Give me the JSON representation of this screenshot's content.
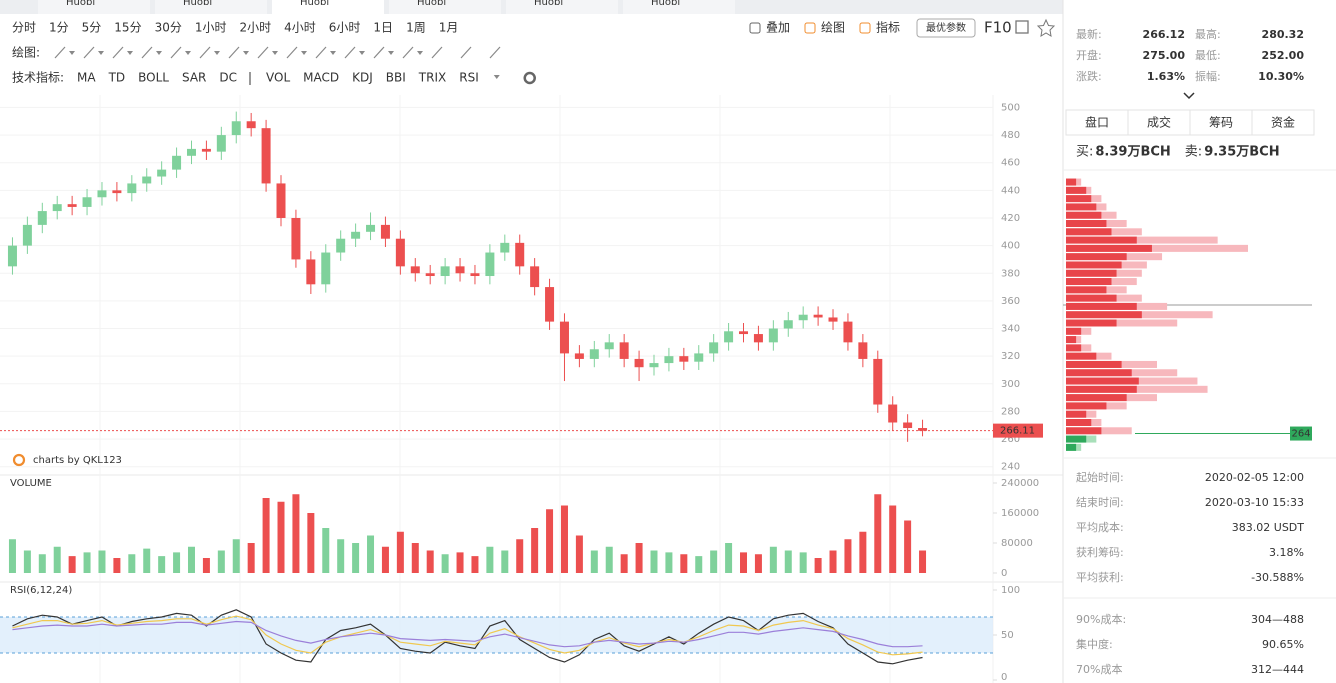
{
  "tabs": [
    "Huobi",
    "Huobi",
    "Huobi",
    "Huobi",
    "Huobi",
    "Huobi"
  ],
  "toolbar": {
    "periods": [
      "分时",
      "1分",
      "5分",
      "15分",
      "30分",
      "1小时",
      "2小时",
      "4小时",
      "6小时",
      "1日",
      "1周",
      "1月"
    ],
    "active_period": "4小时",
    "tools": [
      "叠加",
      "绘图",
      "指标"
    ],
    "active_tools": [
      "绘图",
      "指标"
    ],
    "button": "最优参数",
    "f10": "F10",
    "draw_label": "绘图:",
    "indicator_label": "技术指标:",
    "indicators": [
      "MA",
      "TD",
      "BOLL",
      "SAR",
      "DC",
      "VOL",
      "MACD",
      "KDJ",
      "BBI",
      "TRIX",
      "RSI"
    ],
    "active_indicators": [
      "VOL",
      "RSI"
    ]
  },
  "price_chart": {
    "type": "candlestick",
    "up_color": "#7fd19b",
    "down_color": "#ec4f4f",
    "ylim": [
      234,
      509
    ],
    "yticks": [
      240,
      260,
      280,
      300,
      320,
      340,
      360,
      380,
      400,
      420,
      440,
      460,
      480,
      500
    ],
    "grid": true,
    "open": [
      385,
      400,
      415,
      425,
      430,
      428,
      435,
      440,
      438,
      445,
      450,
      455,
      465,
      470,
      468,
      480,
      490,
      485,
      445,
      420,
      390,
      372,
      395,
      405,
      410,
      415,
      405,
      385,
      380,
      378,
      385,
      380,
      378,
      395,
      402,
      385,
      370,
      345,
      322,
      318,
      325,
      330,
      318,
      312,
      315,
      320,
      316,
      322,
      330,
      338,
      336,
      330,
      340,
      346,
      350,
      348,
      345,
      330,
      318,
      285,
      272,
      268
    ],
    "high": [
      406,
      421,
      431,
      436,
      436,
      441,
      446,
      446,
      451,
      456,
      461,
      471,
      476,
      476,
      486,
      497,
      496,
      491,
      451,
      426,
      396,
      401,
      411,
      416,
      424,
      421,
      411,
      391,
      386,
      391,
      391,
      386,
      401,
      408,
      408,
      391,
      376,
      351,
      328,
      331,
      336,
      336,
      324,
      321,
      326,
      326,
      328,
      336,
      344,
      344,
      342,
      346,
      352,
      356,
      356,
      354,
      351,
      336,
      324,
      291,
      278,
      274
    ],
    "low": [
      379,
      394,
      409,
      419,
      422,
      422,
      429,
      432,
      432,
      439,
      444,
      449,
      459,
      462,
      462,
      474,
      479,
      439,
      414,
      384,
      365,
      366,
      389,
      399,
      404,
      399,
      379,
      374,
      372,
      372,
      374,
      372,
      372,
      389,
      379,
      364,
      339,
      302,
      312,
      312,
      319,
      312,
      302,
      306,
      309,
      310,
      310,
      316,
      324,
      330,
      324,
      324,
      334,
      340,
      342,
      339,
      324,
      312,
      279,
      266,
      258,
      262
    ],
    "close": [
      400,
      415,
      425,
      430,
      428,
      435,
      440,
      438,
      445,
      450,
      455,
      465,
      470,
      468,
      480,
      490,
      485,
      445,
      420,
      390,
      372,
      395,
      405,
      410,
      415,
      405,
      385,
      380,
      378,
      385,
      380,
      378,
      395,
      402,
      385,
      370,
      345,
      322,
      318,
      325,
      330,
      318,
      312,
      315,
      320,
      316,
      322,
      330,
      338,
      336,
      330,
      340,
      346,
      350,
      348,
      345,
      330,
      318,
      285,
      272,
      268,
      266
    ],
    "last_price": 266.11,
    "watermark": "charts by QKL123"
  },
  "volume": {
    "type": "bar",
    "title": "VOLUME",
    "ylim": [
      0,
      240000
    ],
    "yticks": [
      0,
      80000,
      160000,
      240000
    ],
    "values": [
      90000,
      60000,
      50000,
      70000,
      45000,
      55000,
      60000,
      40000,
      50000,
      65000,
      45000,
      55000,
      70000,
      40000,
      60000,
      90000,
      80000,
      200000,
      190000,
      210000,
      160000,
      120000,
      90000,
      80000,
      100000,
      70000,
      110000,
      80000,
      60000,
      50000,
      55000,
      45000,
      70000,
      60000,
      90000,
      120000,
      170000,
      180000,
      100000,
      60000,
      70000,
      50000,
      80000,
      60000,
      55000,
      50000,
      45000,
      60000,
      80000,
      55000,
      50000,
      70000,
      60000,
      55000,
      40000,
      60000,
      90000,
      110000,
      210000,
      180000,
      140000,
      60000
    ]
  },
  "rsi": {
    "type": "line",
    "title": "RSI(6,12,24)",
    "ylim": [
      0,
      100
    ],
    "yticks": [
      0,
      50,
      100
    ],
    "band": [
      30,
      70
    ],
    "series": [
      {
        "color": "#333333",
        "values": [
          60,
          68,
          72,
          70,
          62,
          66,
          70,
          60,
          65,
          68,
          70,
          74,
          72,
          60,
          72,
          78,
          70,
          40,
          30,
          22,
          20,
          45,
          55,
          58,
          62,
          50,
          35,
          32,
          30,
          42,
          38,
          35,
          60,
          66,
          45,
          35,
          25,
          20,
          28,
          45,
          52,
          38,
          32,
          40,
          48,
          40,
          52,
          62,
          70,
          66,
          55,
          68,
          72,
          74,
          65,
          58,
          40,
          30,
          20,
          18,
          22,
          25
        ]
      },
      {
        "color": "#f0c850",
        "values": [
          58,
          62,
          66,
          66,
          62,
          63,
          66,
          61,
          63,
          65,
          66,
          68,
          68,
          62,
          67,
          71,
          67,
          50,
          40,
          33,
          30,
          42,
          48,
          52,
          56,
          50,
          42,
          40,
          38,
          43,
          41,
          39,
          52,
          57,
          48,
          41,
          34,
          30,
          33,
          42,
          47,
          41,
          37,
          41,
          45,
          42,
          48,
          55,
          61,
          60,
          55,
          61,
          64,
          66,
          61,
          57,
          46,
          39,
          31,
          28,
          29,
          31
        ]
      },
      {
        "color": "#9b7fd9",
        "values": [
          56,
          58,
          60,
          61,
          60,
          60,
          62,
          60,
          61,
          62,
          62,
          64,
          64,
          61,
          63,
          65,
          64,
          55,
          49,
          44,
          41,
          45,
          48,
          50,
          52,
          50,
          46,
          45,
          44,
          45,
          44,
          43,
          48,
          51,
          47,
          43,
          39,
          37,
          38,
          42,
          44,
          42,
          40,
          41,
          43,
          42,
          45,
          49,
          53,
          53,
          51,
          54,
          56,
          58,
          56,
          54,
          49,
          45,
          40,
          37,
          37,
          38
        ]
      }
    ]
  },
  "quote": {
    "rows": [
      [
        {
          "label": "最新:",
          "value": "266.12"
        },
        {
          "label": "最高:",
          "value": "280.32",
          "color": "#25a65b"
        }
      ],
      [
        {
          "label": "开盘:",
          "value": "275.00"
        },
        {
          "label": "最低:",
          "value": "252.00",
          "color": "#e8454a"
        }
      ],
      [
        {
          "label": "涨跌:",
          "value": "1.63%",
          "color": "#25a65b"
        },
        {
          "label": "振幅:",
          "value": "10.30%",
          "color": "#25a65b"
        }
      ]
    ]
  },
  "side_tabs": {
    "items": [
      "盘口",
      "成交",
      "筹码",
      "资金"
    ],
    "active": "筹码"
  },
  "orders": {
    "buy_label": "买:",
    "buy": "8.39万BCH",
    "sell_label": "卖:",
    "sell": "9.35万BCH",
    "color": "#3cb878"
  },
  "chips": {
    "prices": [
      254,
      260,
      266,
      272,
      278,
      284,
      290,
      296,
      302,
      308,
      314,
      320,
      326,
      332,
      338,
      344,
      350,
      356,
      362,
      368,
      374,
      380,
      386,
      392,
      398,
      404,
      410,
      416,
      422,
      428,
      434,
      440,
      446
    ],
    "red": [
      10,
      20,
      35,
      25,
      20,
      40,
      60,
      70,
      72,
      65,
      55,
      30,
      15,
      10,
      15,
      50,
      75,
      70,
      50,
      40,
      45,
      50,
      55,
      60,
      85,
      70,
      45,
      40,
      35,
      30,
      25,
      20,
      10
    ],
    "pink": [
      15,
      30,
      65,
      35,
      30,
      60,
      90,
      140,
      130,
      110,
      90,
      45,
      25,
      15,
      25,
      110,
      145,
      100,
      75,
      60,
      70,
      75,
      80,
      95,
      180,
      150,
      75,
      60,
      50,
      40,
      35,
      25,
      15
    ],
    "red_color": "#e8454a",
    "pink_color": "#f7b8bd",
    "below_color": "#2fa95c",
    "below_light_color": "#a8dfb9",
    "current": 264
  },
  "info": {
    "rows": [
      {
        "label": "起始时间:",
        "value": "2020-02-05 12:00"
      },
      {
        "label": "结束时间:",
        "value": "2020-03-10 15:33"
      },
      {
        "label": "平均成本:",
        "value": "383.02 USDT",
        "color": "#e8454a"
      },
      {
        "label": "获利筹码:",
        "value": "3.18%"
      },
      {
        "label": "平均获利:",
        "value": "-30.588%",
        "color": "#e8454a"
      }
    ],
    "rows2": [
      {
        "label": "90%成本:",
        "value": "304—488"
      },
      {
        "label": "集中度:",
        "value": "90.65%"
      },
      {
        "label": "70%成本",
        "value": "312—444"
      }
    ]
  }
}
